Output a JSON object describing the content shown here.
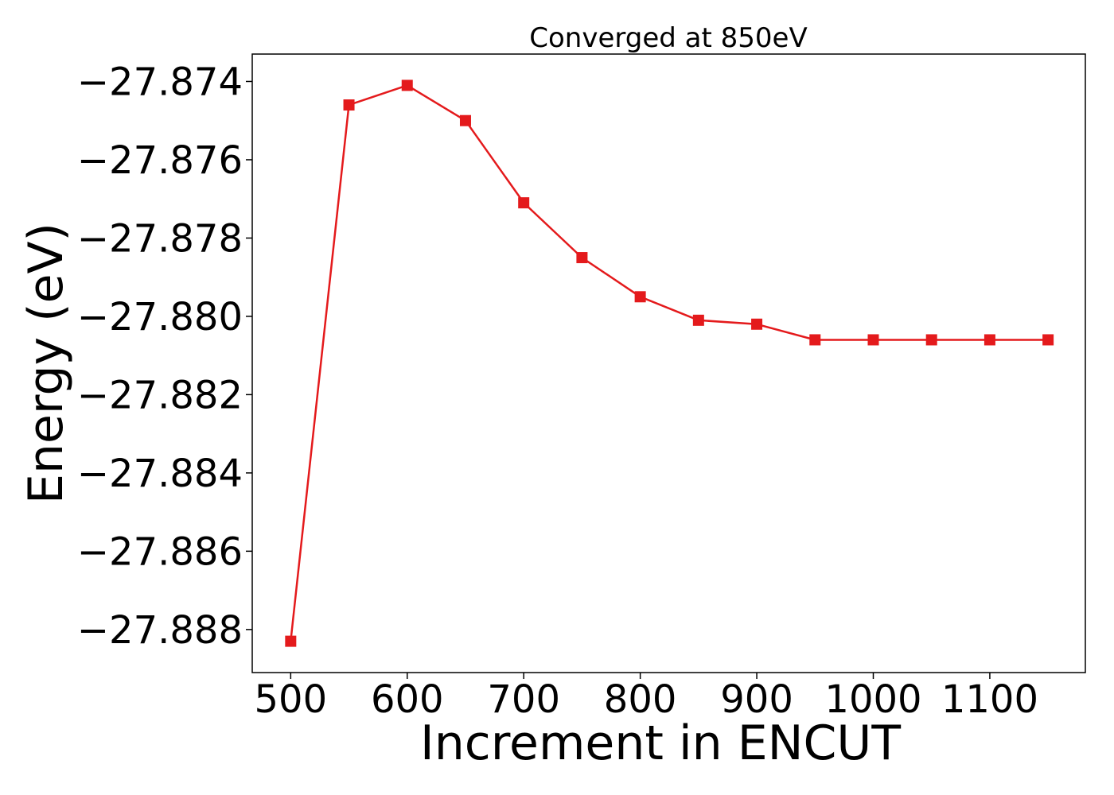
{
  "chart_data": {
    "type": "line",
    "title": "Converged at 850eV",
    "xlabel": "Increment in ENCUT",
    "ylabel": "Energy (eV)",
    "xlim": [
      467,
      1182
    ],
    "ylim": [
      -27.8891,
      -27.8733
    ],
    "x_ticks": [
      500,
      600,
      700,
      800,
      900,
      1000,
      1100
    ],
    "x_tick_labels": [
      "500",
      "600",
      "700",
      "800",
      "900",
      "1000",
      "1100"
    ],
    "y_ticks": [
      -27.874,
      -27.876,
      -27.878,
      -27.88,
      -27.882,
      -27.884,
      -27.886,
      -27.888
    ],
    "y_tick_labels": [
      "−27.874",
      "−27.876",
      "−27.878",
      "−27.880",
      "−27.882",
      "−27.884",
      "−27.886",
      "−27.888"
    ],
    "grid": false,
    "legend": "none",
    "series": [
      {
        "color": "#e41a1c",
        "marker": "square",
        "x": [
          500,
          550,
          600,
          650,
          700,
          750,
          800,
          850,
          900,
          950,
          1000,
          1050,
          1100,
          1150
        ],
        "y": [
          -27.8883,
          -27.8746,
          -27.8741,
          -27.875,
          -27.8771,
          -27.8785,
          -27.8795,
          -27.8801,
          -27.8802,
          -27.8806,
          -27.8806,
          -27.8806,
          -27.8806,
          -27.8806
        ]
      }
    ]
  }
}
